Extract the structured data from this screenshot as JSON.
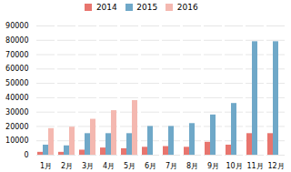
{
  "chart_data": {
    "type": "bar",
    "categories": [
      "1月",
      "2月",
      "3月",
      "4月",
      "5月",
      "6月",
      "7月",
      "8月",
      "9月",
      "10月",
      "11月",
      "12月"
    ],
    "series": [
      {
        "name": "2014",
        "color": "#e8756e",
        "values": [
          2000,
          2000,
          3500,
          5000,
          4500,
          5500,
          6000,
          5500,
          9000,
          7000,
          15000,
          15000
        ]
      },
      {
        "name": "2015",
        "color": "#6fa8c8",
        "values": [
          7000,
          6500,
          15000,
          15000,
          15000,
          20000,
          20000,
          22000,
          28000,
          36000,
          79000,
          79000
        ]
      },
      {
        "name": "2016",
        "color": "#f4b8b0",
        "values": [
          18500,
          19500,
          25000,
          31000,
          38000,
          0,
          0,
          0,
          0,
          0,
          0,
          0
        ]
      }
    ],
    "ylim": [
      0,
      90000
    ],
    "yticks": [
      0,
      10000,
      20000,
      30000,
      40000,
      50000,
      60000,
      70000,
      80000,
      90000
    ],
    "grid": true,
    "legend": "top"
  }
}
